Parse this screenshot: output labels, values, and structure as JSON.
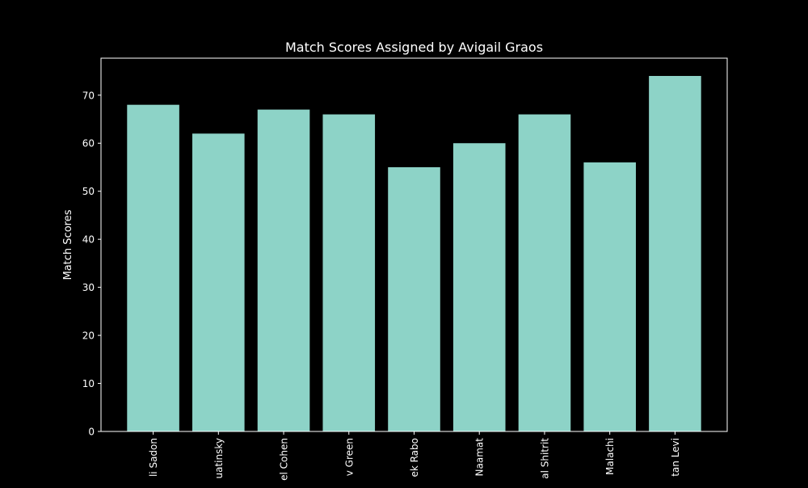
{
  "chart_data": {
    "type": "bar",
    "title": "Match Scores Assigned by Avigail Graos",
    "xlabel": "",
    "ylabel": "Match Scores",
    "categories": [
      "li Sadon",
      "uatinsky",
      "el Cohen",
      "v Green",
      "ek Rabo",
      "Naamat",
      "al Shitrit",
      "Malachi",
      "tan Levi"
    ],
    "values": [
      68,
      62,
      67,
      66,
      55,
      60,
      66,
      56,
      74
    ],
    "ylim": [
      0,
      77.7
    ],
    "yticks": [
      0,
      10,
      20,
      30,
      40,
      50,
      60,
      70
    ],
    "grid": false,
    "legend": "none",
    "colors": {
      "background": "#000000",
      "bar": "#8dd3c7",
      "axis": "#ffffff",
      "text": "#ffffff"
    }
  }
}
